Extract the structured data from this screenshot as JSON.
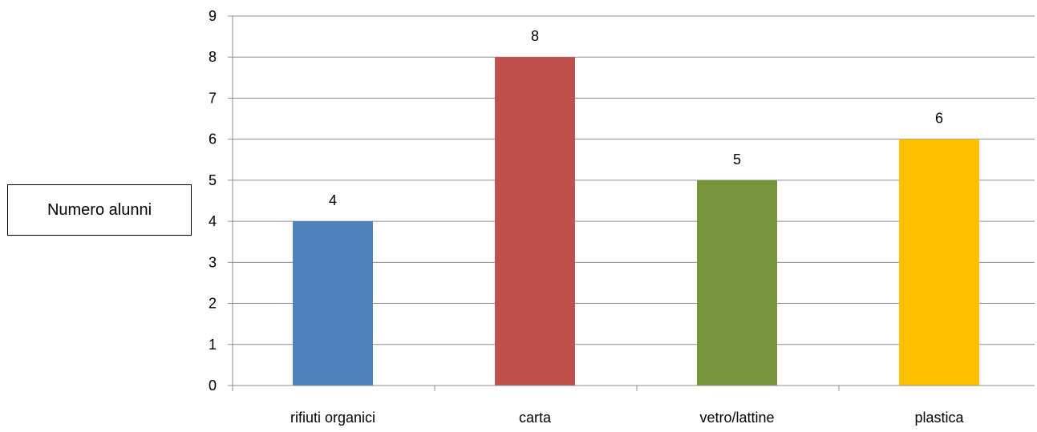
{
  "chart_data": {
    "type": "bar",
    "title": "",
    "xlabel": "",
    "ylabel": "Numero alunni",
    "categories": [
      "rifiuti organici",
      "carta",
      "vetro/lattine",
      "plastica"
    ],
    "values": [
      4,
      8,
      5,
      6
    ],
    "data_labels": [
      "4",
      "8",
      "5",
      "6"
    ],
    "colors": [
      "#4F81BD",
      "#C0504D",
      "#77933C",
      "#FFC000"
    ],
    "ylim": [
      0,
      9
    ],
    "yticks": [
      "0",
      "1",
      "2",
      "3",
      "4",
      "5",
      "6",
      "7",
      "8",
      "9"
    ],
    "grid": true,
    "legend": "none"
  }
}
